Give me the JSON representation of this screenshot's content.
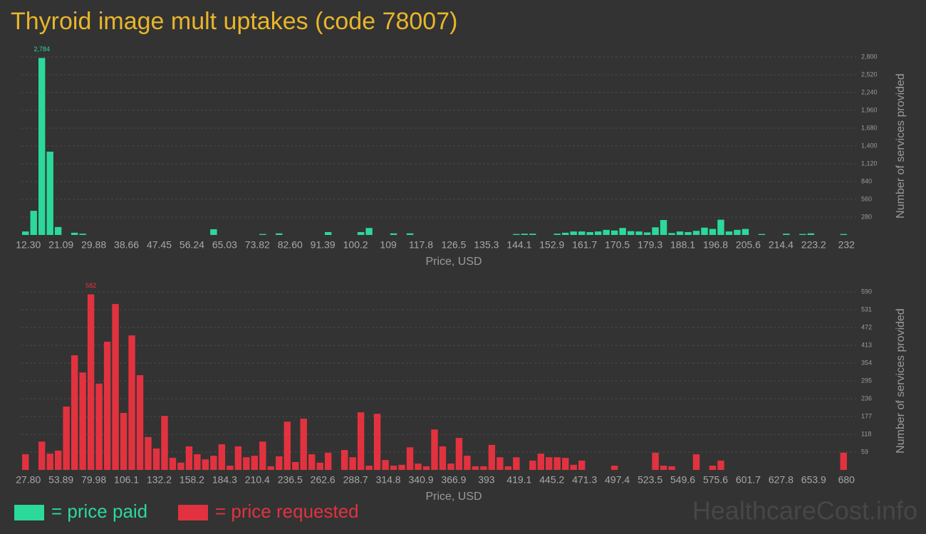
{
  "title": "Thyroid image mult uptakes (code 78007)",
  "watermark": "HealthcareCost.info",
  "legend": [
    {
      "label": "= price paid",
      "color": "#2bd99b"
    },
    {
      "label": "= price requested",
      "color": "#e2323f"
    }
  ],
  "chart_data": [
    {
      "type": "bar",
      "color": "#2bd99b",
      "grid": true,
      "xlabel": "Price, USD",
      "ylabel": "Number of services provided",
      "ylim": [
        0,
        2800
      ],
      "yticks": [
        280,
        560,
        840,
        {
          "value": 1120,
          "label": "1,120"
        },
        {
          "value": 1400,
          "label": "1,400"
        },
        {
          "value": 1680,
          "label": "1,680"
        },
        {
          "value": 1960,
          "label": "1,960"
        },
        {
          "value": 2240,
          "label": "2,240"
        },
        {
          "value": 2520,
          "label": "2,520"
        },
        {
          "value": 2800,
          "label": "2,800"
        }
      ],
      "categories": [
        "12.30",
        null,
        null,
        null,
        "21.09",
        null,
        null,
        null,
        "29.88",
        null,
        null,
        null,
        "38.66",
        null,
        null,
        null,
        "47.45",
        null,
        null,
        null,
        "56.24",
        null,
        null,
        null,
        "65.03",
        null,
        null,
        null,
        "73.82",
        null,
        null,
        null,
        "82.60",
        null,
        null,
        null,
        "91.39",
        null,
        null,
        null,
        "100.2",
        null,
        null,
        null,
        "109",
        null,
        null,
        null,
        "117.8",
        null,
        null,
        null,
        "126.5",
        null,
        null,
        null,
        "135.3",
        null,
        null,
        null,
        "144.1",
        null,
        null,
        null,
        "152.9",
        null,
        null,
        null,
        "161.7",
        null,
        null,
        null,
        "170.5",
        null,
        null,
        null,
        "179.3",
        null,
        null,
        null,
        "188.1",
        null,
        null,
        null,
        "196.8",
        null,
        null,
        null,
        "205.6",
        null,
        null,
        null,
        "214.4",
        null,
        null,
        null,
        "223.2",
        null,
        null,
        null,
        "232"
      ],
      "values": [
        55,
        380,
        2784,
        1310,
        125,
        0,
        35,
        20,
        0,
        0,
        0,
        0,
        0,
        0,
        0,
        0,
        0,
        0,
        0,
        0,
        0,
        0,
        0,
        90,
        0,
        0,
        0,
        0,
        0,
        15,
        0,
        25,
        0,
        0,
        0,
        0,
        0,
        45,
        0,
        0,
        0,
        45,
        110,
        0,
        0,
        25,
        0,
        25,
        0,
        0,
        0,
        0,
        0,
        0,
        0,
        0,
        0,
        0,
        0,
        0,
        15,
        20,
        20,
        0,
        0,
        20,
        35,
        55,
        55,
        45,
        55,
        80,
        70,
        110,
        60,
        55,
        40,
        120,
        235,
        30,
        55,
        45,
        65,
        115,
        95,
        240,
        55,
        80,
        95,
        0,
        15,
        0,
        0,
        20,
        0,
        15,
        25,
        0,
        0,
        0,
        15
      ],
      "value_labels": [
        null,
        null,
        "2,784",
        null,
        null,
        null,
        null,
        null,
        null,
        null,
        null,
        null,
        null,
        null,
        null,
        null,
        null,
        null,
        null,
        null,
        null,
        null,
        null,
        null,
        null,
        null,
        null,
        null,
        null,
        null,
        null,
        null,
        null,
        null,
        null,
        null,
        null,
        null,
        null,
        null,
        null,
        null,
        null,
        null,
        null,
        null,
        null,
        null,
        null,
        null,
        null,
        null,
        null,
        null,
        null,
        null,
        null,
        null,
        null,
        null,
        null,
        null,
        null,
        null,
        null,
        null,
        null,
        null,
        null,
        null,
        null,
        null,
        null,
        null,
        null,
        null,
        null,
        null,
        null,
        null,
        null,
        null,
        null,
        null,
        null,
        null,
        null,
        null,
        null,
        null,
        null,
        null,
        null,
        null,
        null,
        null,
        null,
        null,
        null,
        null,
        null
      ]
    },
    {
      "type": "bar",
      "color": "#e2323f",
      "grid": true,
      "xlabel": "Price, USD",
      "ylabel": "Number of services provided",
      "ylim": [
        0,
        590
      ],
      "yticks": [
        59,
        118,
        177,
        236,
        295,
        354,
        413,
        472,
        531,
        590
      ],
      "categories": [
        "27.80",
        null,
        null,
        null,
        "53.89",
        null,
        null,
        null,
        "79.98",
        null,
        null,
        null,
        "106.1",
        null,
        null,
        null,
        "132.2",
        null,
        null,
        null,
        "158.2",
        null,
        null,
        null,
        "184.3",
        null,
        null,
        null,
        "210.4",
        null,
        null,
        null,
        "236.5",
        null,
        null,
        null,
        "262.6",
        null,
        null,
        null,
        "288.7",
        null,
        null,
        null,
        "314.8",
        null,
        null,
        null,
        "340.9",
        null,
        null,
        null,
        "366.9",
        null,
        null,
        null,
        "393",
        null,
        null,
        null,
        "419.1",
        null,
        null,
        null,
        "445.2",
        null,
        null,
        null,
        "471.3",
        null,
        null,
        null,
        "497.4",
        null,
        null,
        null,
        "523.5",
        null,
        null,
        null,
        "549.6",
        null,
        null,
        null,
        "575.6",
        null,
        null,
        null,
        "601.7",
        null,
        null,
        null,
        "627.8",
        null,
        null,
        null,
        "653.9",
        null,
        null,
        null,
        "680"
      ],
      "values": [
        52,
        0,
        94,
        54,
        64,
        210,
        380,
        323,
        582,
        286,
        425,
        550,
        189,
        446,
        314,
        109,
        71,
        179,
        40,
        24,
        78,
        52,
        35,
        47,
        85,
        14,
        78,
        42,
        47,
        94,
        12,
        45,
        160,
        26,
        170,
        52,
        24,
        57,
        0,
        66,
        42,
        191,
        14,
        186,
        33,
        14,
        17,
        75,
        21,
        12,
        134,
        78,
        21,
        106,
        47,
        12,
        12,
        83,
        42,
        12,
        42,
        0,
        31,
        54,
        42,
        42,
        40,
        17,
        31,
        0,
        0,
        0,
        14,
        0,
        0,
        0,
        0,
        57,
        14,
        12,
        0,
        0,
        52,
        0,
        14,
        31,
        0,
        0,
        0,
        0,
        0,
        0,
        0,
        0,
        0,
        0,
        0,
        0,
        0,
        0,
        57
      ],
      "value_labels": [
        null,
        null,
        null,
        null,
        null,
        null,
        null,
        null,
        "582",
        null,
        null,
        null,
        null,
        null,
        null,
        null,
        null,
        null,
        null,
        null,
        null,
        null,
        null,
        null,
        null,
        null,
        null,
        null,
        null,
        null,
        null,
        null,
        null,
        null,
        null,
        null,
        null,
        null,
        null,
        null,
        null,
        null,
        null,
        null,
        null,
        null,
        null,
        null,
        null,
        null,
        null,
        null,
        null,
        null,
        null,
        null,
        null,
        null,
        null,
        null,
        null,
        null,
        null,
        null,
        null,
        null,
        null,
        null,
        null,
        null,
        null,
        null,
        null,
        null,
        null,
        null,
        null,
        null,
        null,
        null,
        null,
        null,
        null,
        null,
        null,
        null,
        null,
        null,
        null,
        null,
        null,
        null,
        null,
        null,
        null,
        null,
        null,
        null,
        null,
        null,
        null
      ]
    }
  ]
}
